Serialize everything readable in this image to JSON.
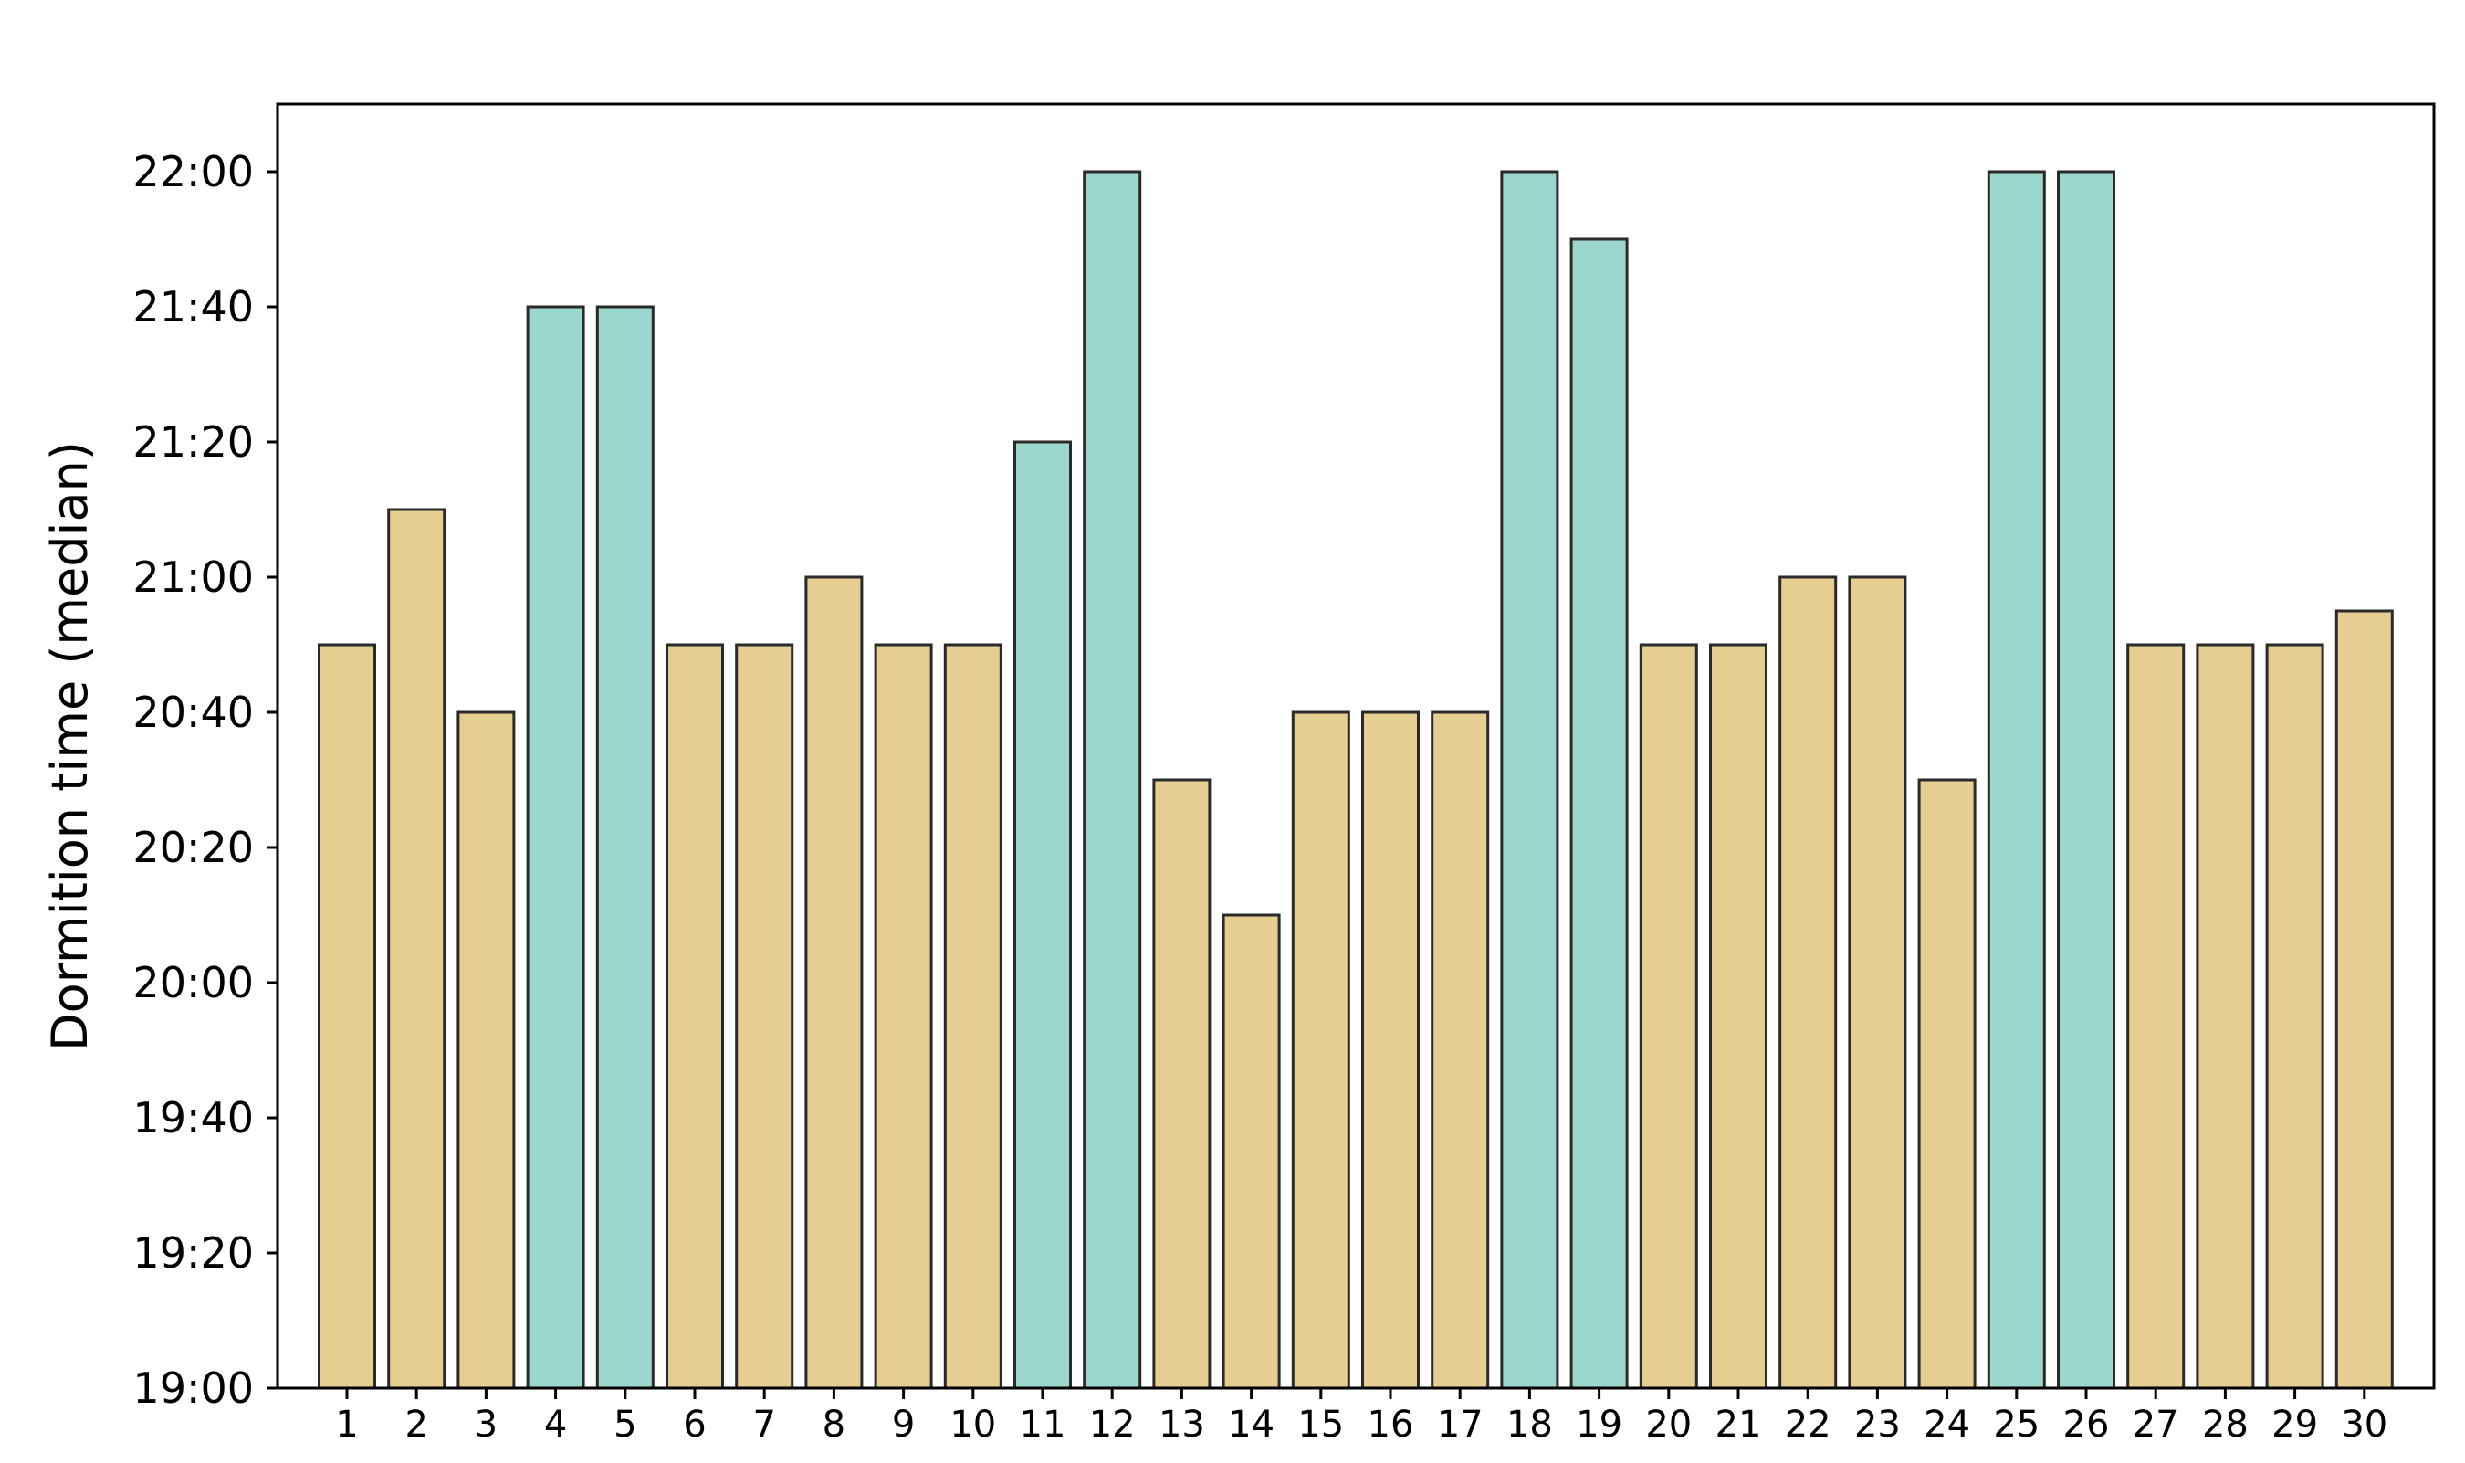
{
  "chart_data": {
    "type": "bar",
    "title": "",
    "xlabel": "",
    "ylabel": "Dormition time (median)",
    "categories": [
      "1",
      "2",
      "3",
      "4",
      "5",
      "6",
      "7",
      "8",
      "9",
      "10",
      "11",
      "12",
      "13",
      "14",
      "15",
      "16",
      "17",
      "18",
      "19",
      "20",
      "21",
      "22",
      "23",
      "24",
      "25",
      "26",
      "27",
      "28",
      "29",
      "30"
    ],
    "values": [
      "20:50",
      "21:10",
      "20:40",
      "21:40",
      "21:40",
      "20:50",
      "20:50",
      "21:00",
      "20:50",
      "20:50",
      "21:20",
      "22:00",
      "20:30",
      "20:10",
      "20:40",
      "20:40",
      "20:40",
      "22:00",
      "21:50",
      "20:50",
      "20:50",
      "21:00",
      "21:00",
      "20:30",
      "22:00",
      "22:00",
      "20:50",
      "20:50",
      "20:50",
      "20:55"
    ],
    "highlighted": [
      false,
      false,
      false,
      true,
      true,
      false,
      false,
      false,
      false,
      false,
      true,
      true,
      false,
      false,
      false,
      false,
      false,
      true,
      true,
      false,
      false,
      false,
      false,
      false,
      true,
      true,
      false,
      false,
      false,
      false
    ],
    "ylim": [
      "19:00",
      "22:10"
    ],
    "yticks": [
      "19:00",
      "19:20",
      "19:40",
      "20:00",
      "20:20",
      "20:40",
      "21:00",
      "21:20",
      "21:40",
      "22:00"
    ],
    "grid": false,
    "legend": "none",
    "colors": {
      "default_bar": "#e6cd91",
      "highlight_bar": "#9bd7cd",
      "bar_edge": "#2a2a2a",
      "axis": "#000000"
    }
  }
}
